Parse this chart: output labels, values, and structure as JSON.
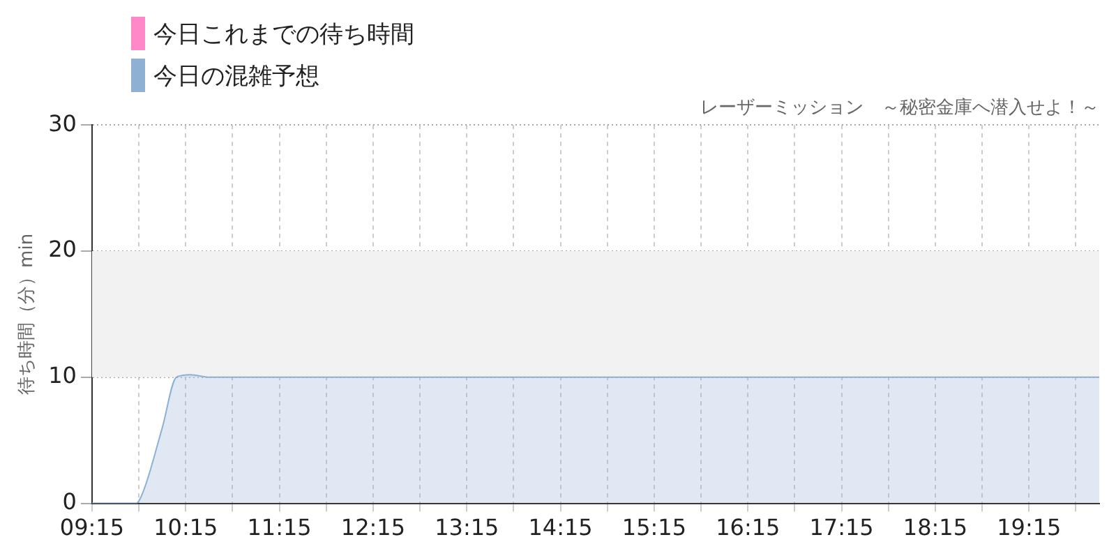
{
  "chart_data": {
    "type": "area",
    "subtitle": "レーザーミッション　～秘密金庫へ潜入せよ！～",
    "ylabel": "待ち時間（分）min",
    "xlim": [
      9.25,
      20.0
    ],
    "xticks": [
      {
        "value": 9.25,
        "label": "09:15"
      },
      {
        "value": 9.75,
        "label": null
      },
      {
        "value": 10.25,
        "label": "10:15"
      },
      {
        "value": 10.75,
        "label": null
      },
      {
        "value": 11.25,
        "label": "11:15"
      },
      {
        "value": 11.75,
        "label": null
      },
      {
        "value": 12.25,
        "label": "12:15"
      },
      {
        "value": 12.75,
        "label": null
      },
      {
        "value": 13.25,
        "label": "13:15"
      },
      {
        "value": 13.75,
        "label": null
      },
      {
        "value": 14.25,
        "label": "14:15"
      },
      {
        "value": 14.75,
        "label": null
      },
      {
        "value": 15.25,
        "label": "15:15"
      },
      {
        "value": 15.75,
        "label": null
      },
      {
        "value": 16.25,
        "label": "16:15"
      },
      {
        "value": 16.75,
        "label": null
      },
      {
        "value": 17.25,
        "label": "17:15"
      },
      {
        "value": 17.75,
        "label": null
      },
      {
        "value": 18.25,
        "label": "18:15"
      },
      {
        "value": 18.75,
        "label": null
      },
      {
        "value": 19.25,
        "label": "19:15"
      },
      {
        "value": 19.75,
        "label": null
      }
    ],
    "ylim": [
      0,
      30
    ],
    "yticks": [
      0,
      10,
      20,
      30
    ],
    "grid": true,
    "legend": "top left",
    "marker": "none",
    "bands": [
      {
        "axis": "y",
        "from": 10,
        "to": 20,
        "color": "#f2f2f2"
      }
    ],
    "series": [
      {
        "name": "今日これまでの待ち時間",
        "color": "#ff88c8"
      },
      {
        "name": "今日の混雑予想",
        "color": "#8eb1d3",
        "x": [
          9.25,
          9.5,
          9.72,
          9.8,
          10.0,
          10.15,
          10.3,
          10.5,
          12,
          15,
          18,
          20.0
        ],
        "values": [
          0,
          0,
          0,
          1,
          6,
          10,
          10.2,
          10,
          10,
          10,
          10,
          10
        ]
      }
    ]
  }
}
